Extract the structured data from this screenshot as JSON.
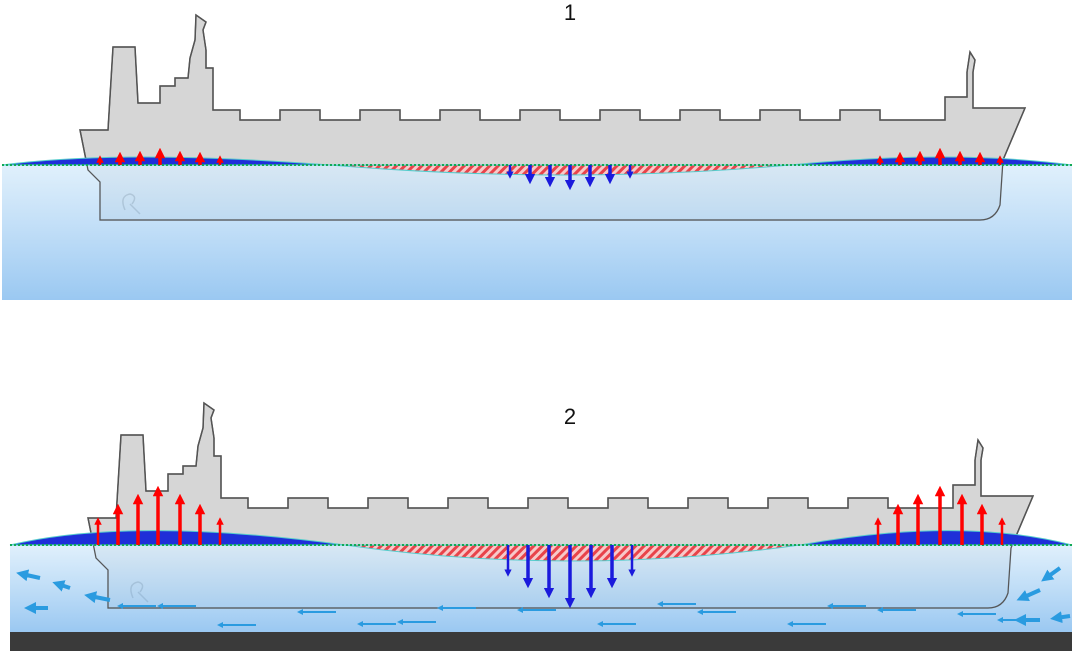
{
  "panels": [
    {
      "label": "1"
    },
    {
      "label": "2"
    }
  ]
}
